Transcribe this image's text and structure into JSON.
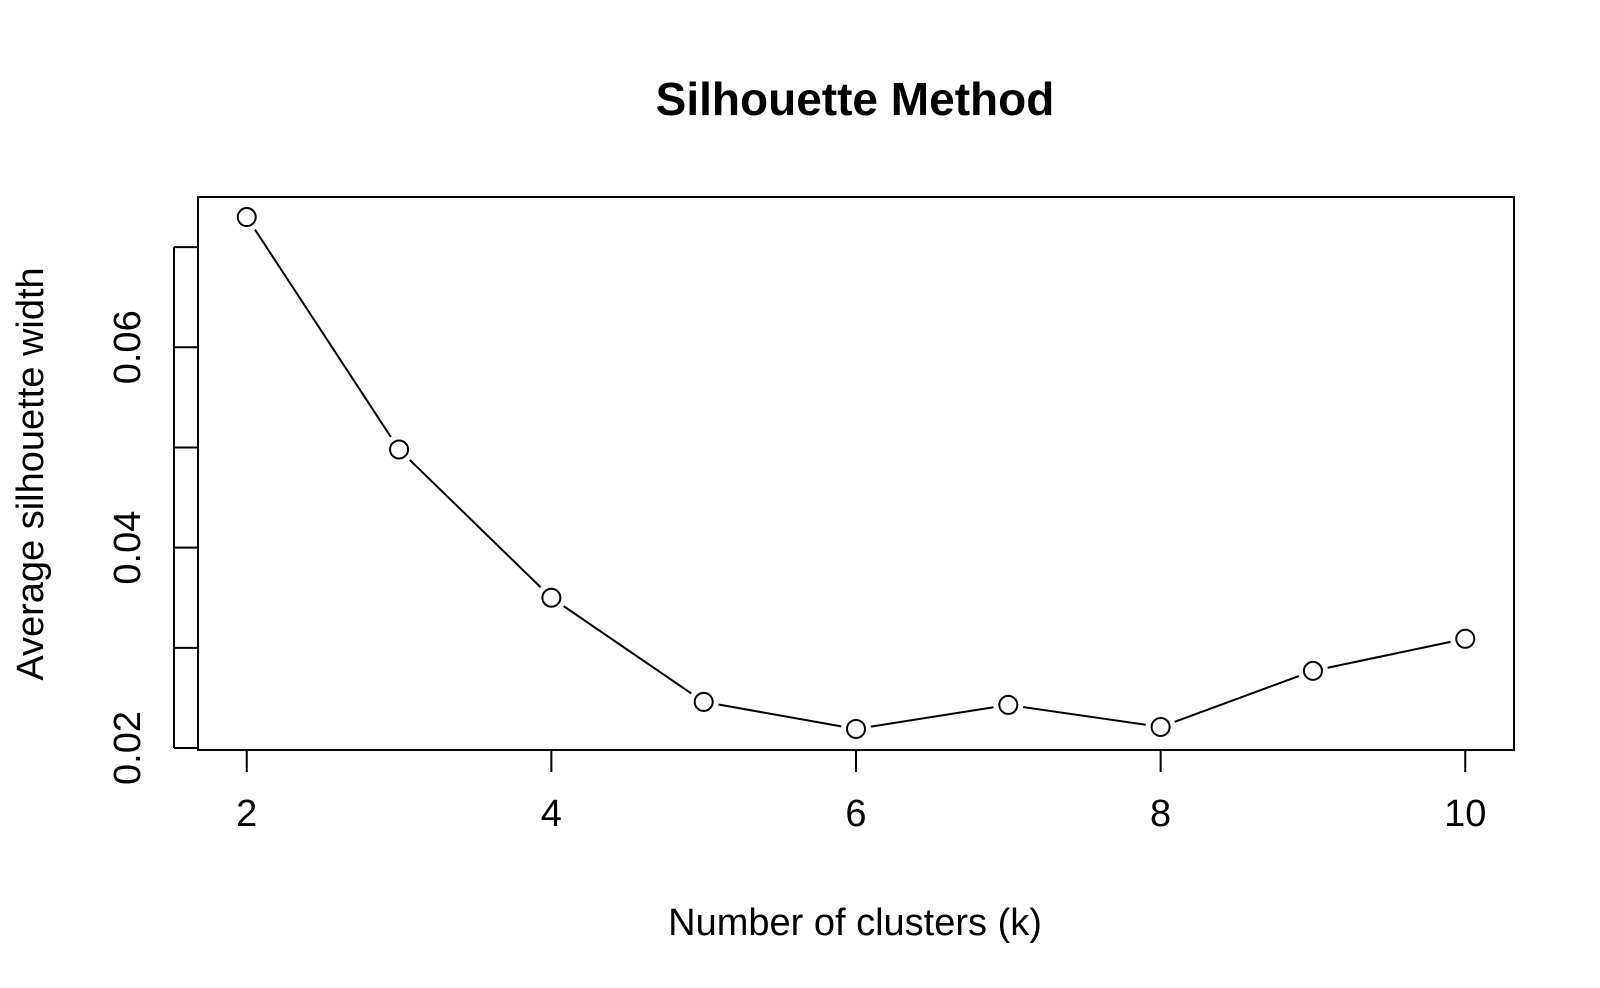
{
  "chart_data": {
    "type": "line",
    "title": "Silhouette Method",
    "xlabel": "Number of clusters (k)",
    "ylabel": "Average silhouette width",
    "x": [
      2,
      3,
      4,
      5,
      6,
      7,
      8,
      9,
      10
    ],
    "series": [
      {
        "values": [
          0.073,
          0.0498,
          0.035,
          0.0246,
          0.0219,
          0.0243,
          0.0221,
          0.0277,
          0.0309
        ]
      }
    ],
    "xticks": [
      2,
      4,
      6,
      8,
      10
    ],
    "yticks": [
      0.02,
      0.03,
      0.04,
      0.05,
      0.06,
      0.07
    ],
    "ytick_labels": [
      "0.02",
      "",
      "0.04",
      "",
      "0.06",
      ""
    ],
    "xlim": [
      1.68,
      10.32
    ],
    "ylim": [
      0.0198,
      0.075
    ],
    "grid": false,
    "legend": "none",
    "marker": "open-circle",
    "line_color": "#000000"
  }
}
